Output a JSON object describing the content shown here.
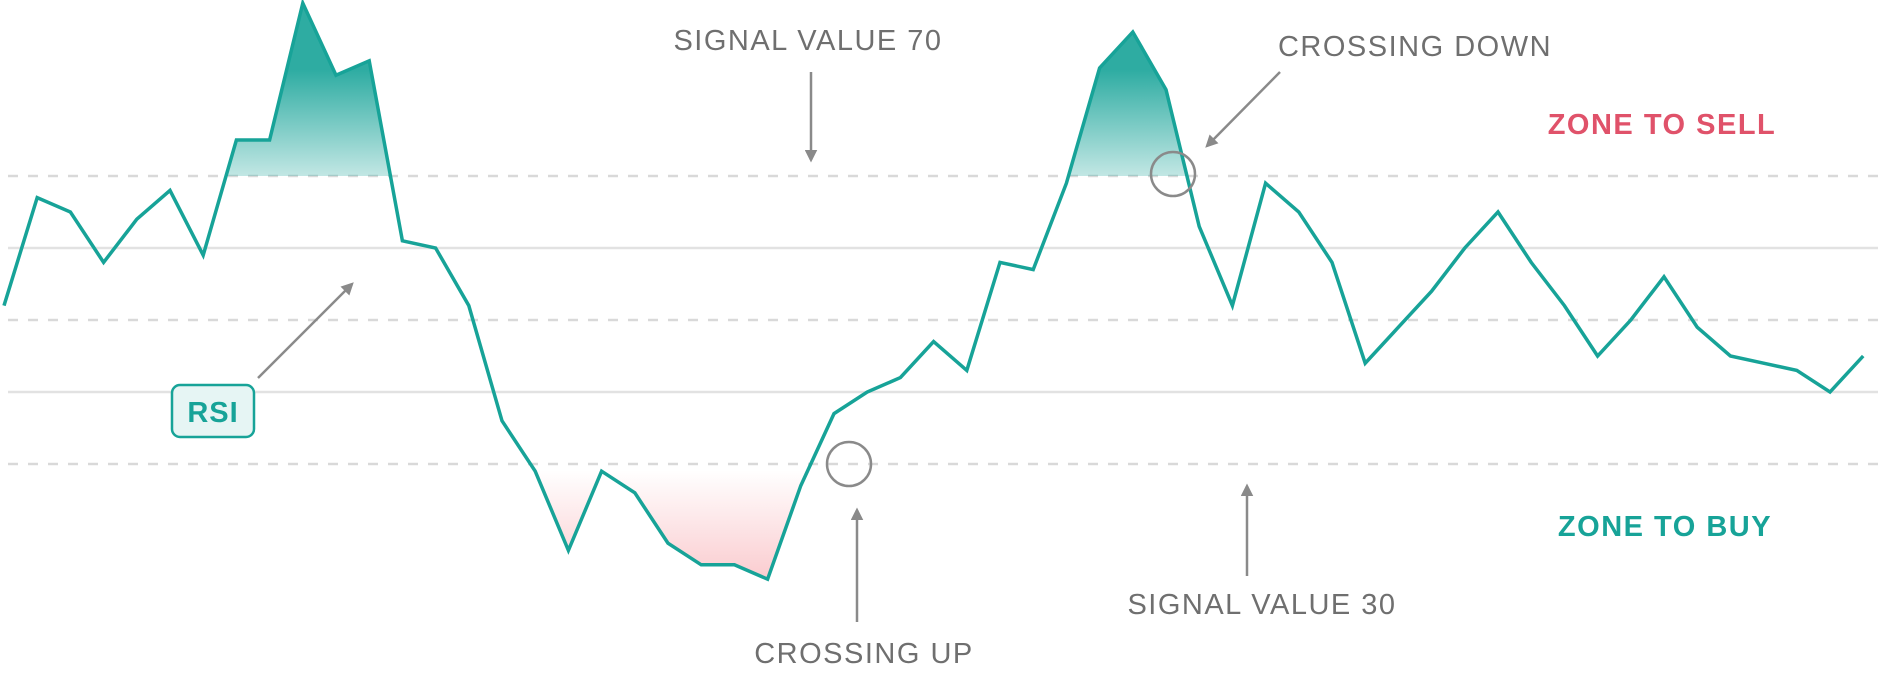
{
  "chart_data": {
    "type": "line",
    "title": "",
    "xlabel": "",
    "ylabel": "",
    "ylim": [
      0,
      100
    ],
    "grid": true,
    "levels": [
      70,
      60,
      50,
      40,
      30
    ],
    "levels_dashed": [
      70,
      50,
      30
    ],
    "series": [
      {
        "label": "RSI",
        "color": "#17a398",
        "points": [
          [
            0,
            52
          ],
          [
            1,
            67
          ],
          [
            2,
            65
          ],
          [
            3,
            58
          ],
          [
            4,
            64
          ],
          [
            5,
            68
          ],
          [
            6,
            59
          ],
          [
            7,
            75
          ],
          [
            8,
            75
          ],
          [
            9,
            94
          ],
          [
            10,
            84
          ],
          [
            11,
            86
          ],
          [
            12,
            61
          ],
          [
            13,
            60
          ],
          [
            14,
            52
          ],
          [
            15,
            36
          ],
          [
            16,
            29
          ],
          [
            17,
            18
          ],
          [
            18,
            29
          ],
          [
            19,
            26
          ],
          [
            20,
            19
          ],
          [
            21,
            16
          ],
          [
            22,
            16
          ],
          [
            23,
            14
          ],
          [
            24,
            27
          ],
          [
            25,
            37
          ],
          [
            26,
            40
          ],
          [
            27,
            42
          ],
          [
            28,
            47
          ],
          [
            29,
            43
          ],
          [
            30,
            58
          ],
          [
            31,
            57
          ],
          [
            32,
            69
          ],
          [
            33,
            85
          ],
          [
            34,
            90
          ],
          [
            35,
            82
          ],
          [
            36,
            63
          ],
          [
            37,
            52
          ],
          [
            38,
            69
          ],
          [
            39,
            65
          ],
          [
            40,
            58
          ],
          [
            41,
            44
          ],
          [
            42,
            49
          ],
          [
            43,
            54
          ],
          [
            44,
            60
          ],
          [
            45,
            65
          ],
          [
            46,
            58
          ],
          [
            47,
            52
          ],
          [
            48,
            45
          ],
          [
            49,
            50
          ],
          [
            50,
            56
          ],
          [
            51,
            49
          ],
          [
            52,
            45
          ],
          [
            53,
            44
          ],
          [
            54,
            43
          ],
          [
            55,
            40
          ],
          [
            56,
            45
          ]
        ]
      }
    ],
    "annotations": {
      "signal_70": "SIGNAL VALUE 70",
      "signal_30": "SIGNAL VALUE 30",
      "crossing_down": "CROSSING DOWN",
      "crossing_up": "CROSSING UP",
      "rsi_label": "RSI",
      "zone_sell": "ZONE TO SELL",
      "zone_buy": "ZONE TO BUY"
    },
    "colors": {
      "line": "#17a398",
      "sell": "#e0526a",
      "buy": "#17a398",
      "annotation": "#6f6f6f",
      "arrow": "#8a8a8a",
      "grid_solid": "#e2e2e2",
      "grid_dashed": "#d9d9d9",
      "fill_top": "#17a398",
      "fill_bottom": "#f7a7ad"
    }
  }
}
